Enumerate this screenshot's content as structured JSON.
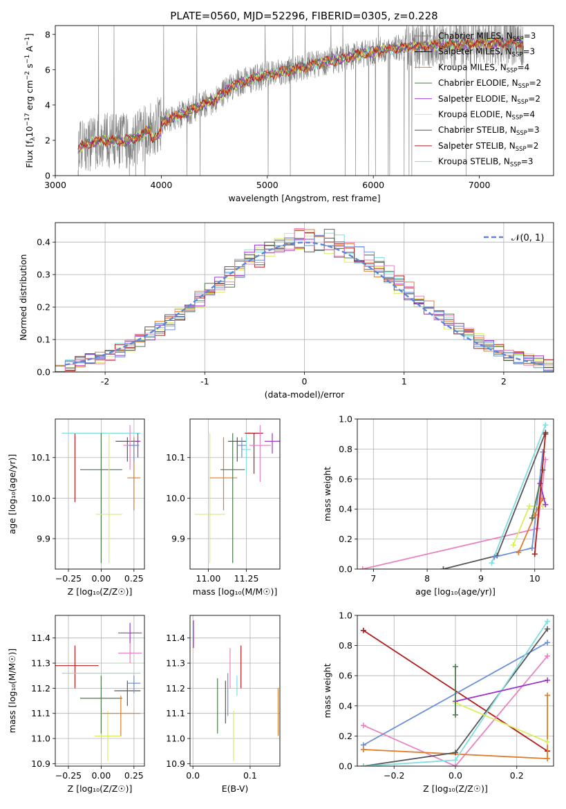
{
  "figure_title": "PLATE=0560, MJD=52296, FIBERID=0305, z=0.228",
  "colors": {
    "Chabrier MILES": "#808080",
    "Salpeter MILES": "#000000",
    "Kroupa MILES": "#e07b28",
    "Chabrier ELODIE": "#4a7a4a",
    "Salpeter ELODIE": "#9932cc",
    "Kroupa ELODIE": "#d9ef5a",
    "Chabrier STELIB": "#555555",
    "Salpeter STELIB": "#b01a1a",
    "Kroupa STELIB": "#7fdede",
    "Gaussian": "#5b86d8",
    "Pink": "#e883c0",
    "Blue": "#6a8fdb"
  },
  "chart_data": [
    {
      "id": "spectrum",
      "type": "line",
      "title": "PLATE=0560, MJD=52296, FIBERID=0305, z=0.228",
      "xlabel": "wavelength [Angstrom, rest frame]",
      "ylabel_prefix": "Flux [f",
      "ylabel_sub": "λ",
      "ylabel_mid": "10",
      "ylabel_sup1": "−17",
      "ylabel_rest": " erg cm",
      "ylabel_sup2": "−2",
      "ylabel_s": " s",
      "ylabel_sup3": "−1",
      "ylabel_A": " A",
      "ylabel_sup4": "−1",
      "ylabel_end": "]",
      "xlim": [
        3000,
        7700
      ],
      "ylim": [
        0,
        8.5
      ],
      "xticks": [
        3000,
        4000,
        5000,
        6000,
        7000
      ],
      "yticks": [
        0,
        2,
        4,
        6,
        8
      ],
      "data_range": [
        3215,
        7420
      ],
      "continuum": [
        [
          3215,
          1.6
        ],
        [
          3400,
          2.0
        ],
        [
          3700,
          2.0
        ],
        [
          3900,
          2.6
        ],
        [
          4000,
          3.0
        ],
        [
          4200,
          3.5
        ],
        [
          4500,
          4.3
        ],
        [
          4700,
          5.2
        ],
        [
          5000,
          5.7
        ],
        [
          5300,
          6.1
        ],
        [
          5600,
          6.5
        ],
        [
          5900,
          6.9
        ],
        [
          6200,
          7.2
        ],
        [
          6600,
          7.4
        ],
        [
          7000,
          7.5
        ],
        [
          7420,
          7.5
        ]
      ],
      "legend": [
        {
          "name": "Chabrier MILES",
          "nssp": "3"
        },
        {
          "name": "Salpeter MILES",
          "nssp": "3"
        },
        {
          "name": "Kroupa MILES",
          "nssp": "4"
        },
        {
          "name": "Chabrier ELODIE",
          "nssp": "2"
        },
        {
          "name": "Salpeter ELODIE",
          "nssp": "2"
        },
        {
          "name": "Kroupa ELODIE",
          "nssp": "4"
        },
        {
          "name": "Chabrier STELIB",
          "nssp": "3"
        },
        {
          "name": "Salpeter STELIB",
          "nssp": "2"
        },
        {
          "name": "Kroupa STELIB",
          "nssp": "3"
        }
      ],
      "legend_nssp_label": "N"
    },
    {
      "id": "residuals",
      "type": "histogram",
      "xlabel": "(data-model)/error",
      "ylabel": "Normed distribution",
      "xlim": [
        -2.5,
        2.5
      ],
      "ylim": [
        0,
        0.46
      ],
      "xticks": [
        -2,
        -1,
        0,
        1,
        2
      ],
      "yticks": [
        0.0,
        0.1,
        0.2,
        0.3,
        0.4
      ],
      "bin_width": 0.1,
      "legend": "𝒩(0, 1)"
    },
    {
      "id": "age_vs_Z",
      "type": "errorbar",
      "xlabel": "Z [log₁₀(Z/Z☉)]",
      "ylabel": "age  [log₁₀(age/yr)]",
      "xlim": [
        -0.35,
        0.33
      ],
      "ylim": [
        9.825,
        10.195
      ],
      "xticks": [
        -0.25,
        0.0,
        0.25
      ],
      "xticklabels": [
        "−0.25",
        "0.00",
        "0.25"
      ],
      "yticks": [
        9.9,
        10.0,
        10.1
      ],
      "points": [
        {
          "c": "Salpeter STELIB",
          "x": -0.2,
          "y": 10.16,
          "xerr": 0.0,
          "yerr": [
            0.17,
            0.0
          ]
        },
        {
          "c": "Kroupa STELIB",
          "x": 0.0,
          "y": 10.16,
          "xerr": 0.3,
          "yerr": [
            0.0,
            0.0
          ]
        },
        {
          "c": "Chabrier ELODIE",
          "x": 0.0,
          "y": 10.07,
          "xerr": 0.16,
          "yerr": [
            0.23,
            0.09
          ]
        },
        {
          "c": "Kroupa ELODIE",
          "x": 0.06,
          "y": 9.96,
          "xerr": 0.1,
          "yerr": [
            0.12,
            0.2
          ]
        },
        {
          "c": "Kroupa MILES",
          "x": 0.25,
          "y": 10.05,
          "xerr": 0.05,
          "yerr": [
            0.08,
            0.1
          ]
        },
        {
          "c": "Chabrier STELIB",
          "x": 0.2,
          "y": 10.14,
          "xerr": 0.09,
          "yerr": [
            0.05,
            0.01
          ]
        },
        {
          "c": "Salpeter ELODIE",
          "x": 0.28,
          "y": 10.14,
          "xerr": 0.02,
          "yerr": [
            0.04,
            0.02
          ]
        },
        {
          "c": "Pink",
          "x": 0.22,
          "y": 10.13,
          "xerr": 0.05,
          "yerr": [
            0.06,
            0.05
          ]
        },
        {
          "c": "Blue",
          "x": 0.25,
          "y": 10.13,
          "xerr": 0.04,
          "yerr": [
            0.04,
            0.01
          ]
        }
      ]
    },
    {
      "id": "age_vs_mass",
      "type": "errorbar",
      "xlabel": "mass [log₁₀(M/M☉)]",
      "xlim": [
        10.88,
        11.47
      ],
      "ylim": [
        9.825,
        10.195
      ],
      "xticks": [
        11.0,
        11.25
      ],
      "xticklabels": [
        "11.00",
        "11.25"
      ],
      "yticks": [
        9.9,
        10.0,
        10.1
      ],
      "points": [
        {
          "c": "Kroupa ELODIE",
          "x": 11.01,
          "y": 9.96,
          "xerr": 0.1,
          "yerr": [
            0.12,
            0.2
          ]
        },
        {
          "c": "Kroupa MILES",
          "x": 11.1,
          "y": 10.05,
          "xerr": 0.09,
          "yerr": [
            0.08,
            0.1
          ]
        },
        {
          "c": "Chabrier ELODIE",
          "x": 11.16,
          "y": 10.07,
          "xerr": 0.08,
          "yerr": [
            0.23,
            0.09
          ]
        },
        {
          "c": "Chabrier STELIB",
          "x": 11.19,
          "y": 10.14,
          "xerr": 0.06,
          "yerr": [
            0.05,
            0.01
          ]
        },
        {
          "c": "Kroupa STELIB",
          "x": 11.25,
          "y": 10.12,
          "xerr": 0.03,
          "yerr": [
            0.06,
            0.04
          ]
        },
        {
          "c": "Blue",
          "x": 11.22,
          "y": 10.13,
          "xerr": 0.03,
          "yerr": [
            0.03,
            0.02
          ]
        },
        {
          "c": "Salpeter STELIB",
          "x": 11.3,
          "y": 10.16,
          "xerr": 0.06,
          "yerr": [
            0.1,
            0.0
          ]
        },
        {
          "c": "Pink",
          "x": 11.34,
          "y": 10.13,
          "xerr": 0.07,
          "yerr": [
            0.09,
            0.05
          ]
        },
        {
          "c": "Salpeter ELODIE",
          "x": 11.42,
          "y": 10.14,
          "xerr": 0.05,
          "yerr": [
            0.03,
            0.02
          ]
        }
      ]
    },
    {
      "id": "weight_vs_age",
      "type": "line",
      "xlabel": "age  [log₁₀(age/yr)]",
      "ylabel": "mass weight",
      "xlim": [
        6.7,
        10.35
      ],
      "ylim": [
        0,
        1
      ],
      "xticks": [
        7,
        8,
        9,
        10
      ],
      "yticks": [
        0.0,
        0.2,
        0.4,
        0.6,
        0.8,
        1.0
      ],
      "series": [
        {
          "c": "Pink",
          "x": [
            6.8,
            10.05,
            10.2
          ],
          "y": [
            0.0,
            0.27,
            0.73
          ]
        },
        {
          "c": "Chabrier STELIB",
          "x": [
            8.3,
            9.3,
            10.2
          ],
          "y": [
            0.0,
            0.09,
            0.91
          ]
        },
        {
          "c": "Kroupa STELIB",
          "x": [
            9.2,
            10.2
          ],
          "y": [
            0.04,
            0.96
          ]
        },
        {
          "c": "Blue",
          "x": [
            9.25,
            9.95,
            10.15
          ],
          "y": [
            0.08,
            0.14,
            0.78
          ]
        },
        {
          "c": "Kroupa ELODIE",
          "x": [
            9.6,
            9.9,
            10.15
          ],
          "y": [
            0.16,
            0.42,
            0.42
          ]
        },
        {
          "c": "Kroupa MILES",
          "x": [
            9.7,
            10.0,
            10.15
          ],
          "y": [
            0.11,
            0.36,
            0.47
          ]
        },
        {
          "c": "Chabrier ELODIE",
          "x": [
            9.95,
            10.15
          ],
          "y": [
            0.34,
            0.66
          ]
        },
        {
          "c": "Salpeter ELODIE",
          "x": [
            10.1,
            10.2
          ],
          "y": [
            0.57,
            0.43
          ]
        },
        {
          "c": "Salpeter STELIB",
          "x": [
            10.0,
            10.2
          ],
          "y": [
            0.1,
            0.9
          ]
        }
      ]
    },
    {
      "id": "mass_vs_Z",
      "type": "errorbar",
      "xlabel": "Z [log₁₀(Z/Z☉)]",
      "ylabel": "mass [log₁₀(M/M☉)]",
      "xlim": [
        -0.35,
        0.33
      ],
      "ylim": [
        10.89,
        11.49
      ],
      "xticks": [
        -0.25,
        0.0,
        0.25
      ],
      "xticklabels": [
        "−0.25",
        "0.00",
        "0.25"
      ],
      "yticks": [
        10.9,
        11.0,
        11.1,
        11.2,
        11.3,
        11.4
      ],
      "points": [
        {
          "c": "Salpeter STELIB",
          "x": -0.2,
          "y": 11.29,
          "xerr": 0.18,
          "yerr": [
            0.09,
            0.08
          ]
        },
        {
          "c": "Kroupa STELIB",
          "x": 0.0,
          "y": 11.26,
          "xerr": 0.3,
          "yerr": [
            0.0,
            0.0
          ]
        },
        {
          "c": "Chabrier ELODIE",
          "x": 0.0,
          "y": 11.16,
          "xerr": 0.16,
          "yerr": [
            0.14,
            0.09
          ]
        },
        {
          "c": "Kroupa ELODIE",
          "x": 0.05,
          "y": 11.01,
          "xerr": 0.1,
          "yerr": [
            0.1,
            0.1
          ]
        },
        {
          "c": "Kroupa MILES",
          "x": 0.15,
          "y": 11.1,
          "xerr": 0.15,
          "yerr": [
            0.09,
            0.07
          ]
        },
        {
          "c": "Chabrier STELIB",
          "x": 0.2,
          "y": 11.19,
          "xerr": 0.1,
          "yerr": [
            0.06,
            0.04
          ]
        },
        {
          "c": "Blue",
          "x": 0.25,
          "y": 11.22,
          "xerr": 0.05,
          "yerr": [
            0.04,
            0.03
          ]
        },
        {
          "c": "Pink",
          "x": 0.22,
          "y": 11.34,
          "xerr": 0.09,
          "yerr": [
            0.04,
            0.04
          ]
        },
        {
          "c": "Salpeter ELODIE",
          "x": 0.22,
          "y": 11.42,
          "xerr": 0.09,
          "yerr": [
            0.04,
            0.04
          ]
        }
      ]
    },
    {
      "id": "mass_vs_ebv",
      "type": "errorbar",
      "xlabel": "E(B-V)",
      "xlim": [
        -0.005,
        0.152
      ],
      "ylim": [
        10.89,
        11.49
      ],
      "xticks": [
        0.0,
        0.1
      ],
      "xticklabels": [
        "0.0",
        "0.1"
      ],
      "yticks": [
        10.9,
        11.0,
        11.1,
        11.2,
        11.3,
        11.4
      ],
      "points": [
        {
          "c": "Salpeter ELODIE",
          "x": 0.001,
          "y": 11.42,
          "xerr": 0.0,
          "yerr": [
            0.06,
            0.05
          ]
        },
        {
          "c": "Chabrier ELODIE",
          "x": 0.043,
          "y": 11.13,
          "xerr": 0.0,
          "yerr": [
            0.11,
            0.11
          ]
        },
        {
          "c": "Chabrier STELIB",
          "x": 0.057,
          "y": 11.14,
          "xerr": 0.0,
          "yerr": [
            0.08,
            0.09
          ]
        },
        {
          "c": "Blue",
          "x": 0.061,
          "y": 11.17,
          "xerr": 0.0,
          "yerr": [
            0.08,
            0.09
          ]
        },
        {
          "c": "Pink",
          "x": 0.065,
          "y": 11.27,
          "xerr": 0.0,
          "yerr": [
            0.07,
            0.09
          ]
        },
        {
          "c": "Kroupa ELODIE",
          "x": 0.071,
          "y": 11.01,
          "xerr": 0.0,
          "yerr": [
            0.1,
            0.1
          ]
        },
        {
          "c": "Kroupa STELIB",
          "x": 0.077,
          "y": 11.22,
          "xerr": 0.0,
          "yerr": [
            0.05,
            0.03
          ]
        },
        {
          "c": "Salpeter STELIB",
          "x": 0.084,
          "y": 11.29,
          "xerr": 0.0,
          "yerr": [
            0.09,
            0.08
          ]
        },
        {
          "c": "Kroupa MILES",
          "x": 0.149,
          "y": 11.1,
          "xerr": 0.0,
          "yerr": [
            0.09,
            0.1
          ]
        }
      ]
    },
    {
      "id": "weight_vs_Z",
      "type": "line",
      "xlabel": "Z [log₁₀(Z/Z☉)]",
      "ylabel": "mass weight",
      "xlim": [
        -0.32,
        0.32
      ],
      "ylim": [
        0,
        1
      ],
      "xticks": [
        -0.2,
        0.0,
        0.2
      ],
      "xticklabels": [
        "−0.2",
        "0.0",
        "0.2"
      ],
      "yticks": [
        0.0,
        0.2,
        0.4,
        0.6,
        0.8,
        1.0
      ],
      "series": [
        {
          "c": "Salpeter STELIB",
          "x": [
            -0.3,
            0.3
          ],
          "y": [
            0.9,
            0.1
          ]
        },
        {
          "c": "Pink",
          "x": [
            -0.3,
            0.0,
            0.3
          ],
          "y": [
            0.27,
            0.0,
            0.73
          ]
        },
        {
          "c": "Blue",
          "x": [
            -0.3,
            0.3
          ],
          "y": [
            0.14,
            0.82
          ]
        },
        {
          "c": "Kroupa MILES",
          "x": [
            -0.3,
            0.3,
            0.3
          ],
          "y": [
            0.11,
            0.05,
            0.47
          ]
        },
        {
          "c": "Chabrier STELIB",
          "x": [
            -0.3,
            0.0,
            0.3
          ],
          "y": [
            0.0,
            0.09,
            0.91
          ]
        },
        {
          "c": "Kroupa STELIB",
          "x": [
            -0.3,
            0.0,
            0.3
          ],
          "y": [
            0.0,
            0.04,
            0.96
          ]
        },
        {
          "c": "Salpeter ELODIE",
          "x": [
            0.0,
            0.3
          ],
          "y": [
            0.43,
            0.57
          ]
        },
        {
          "c": "Kroupa ELODIE",
          "x": [
            0.0,
            0.3
          ],
          "y": [
            0.42,
            0.16
          ]
        },
        {
          "c": "Chabrier ELODIE",
          "x": [
            0.0,
            0.0
          ],
          "y": [
            0.34,
            0.66
          ]
        }
      ]
    }
  ]
}
